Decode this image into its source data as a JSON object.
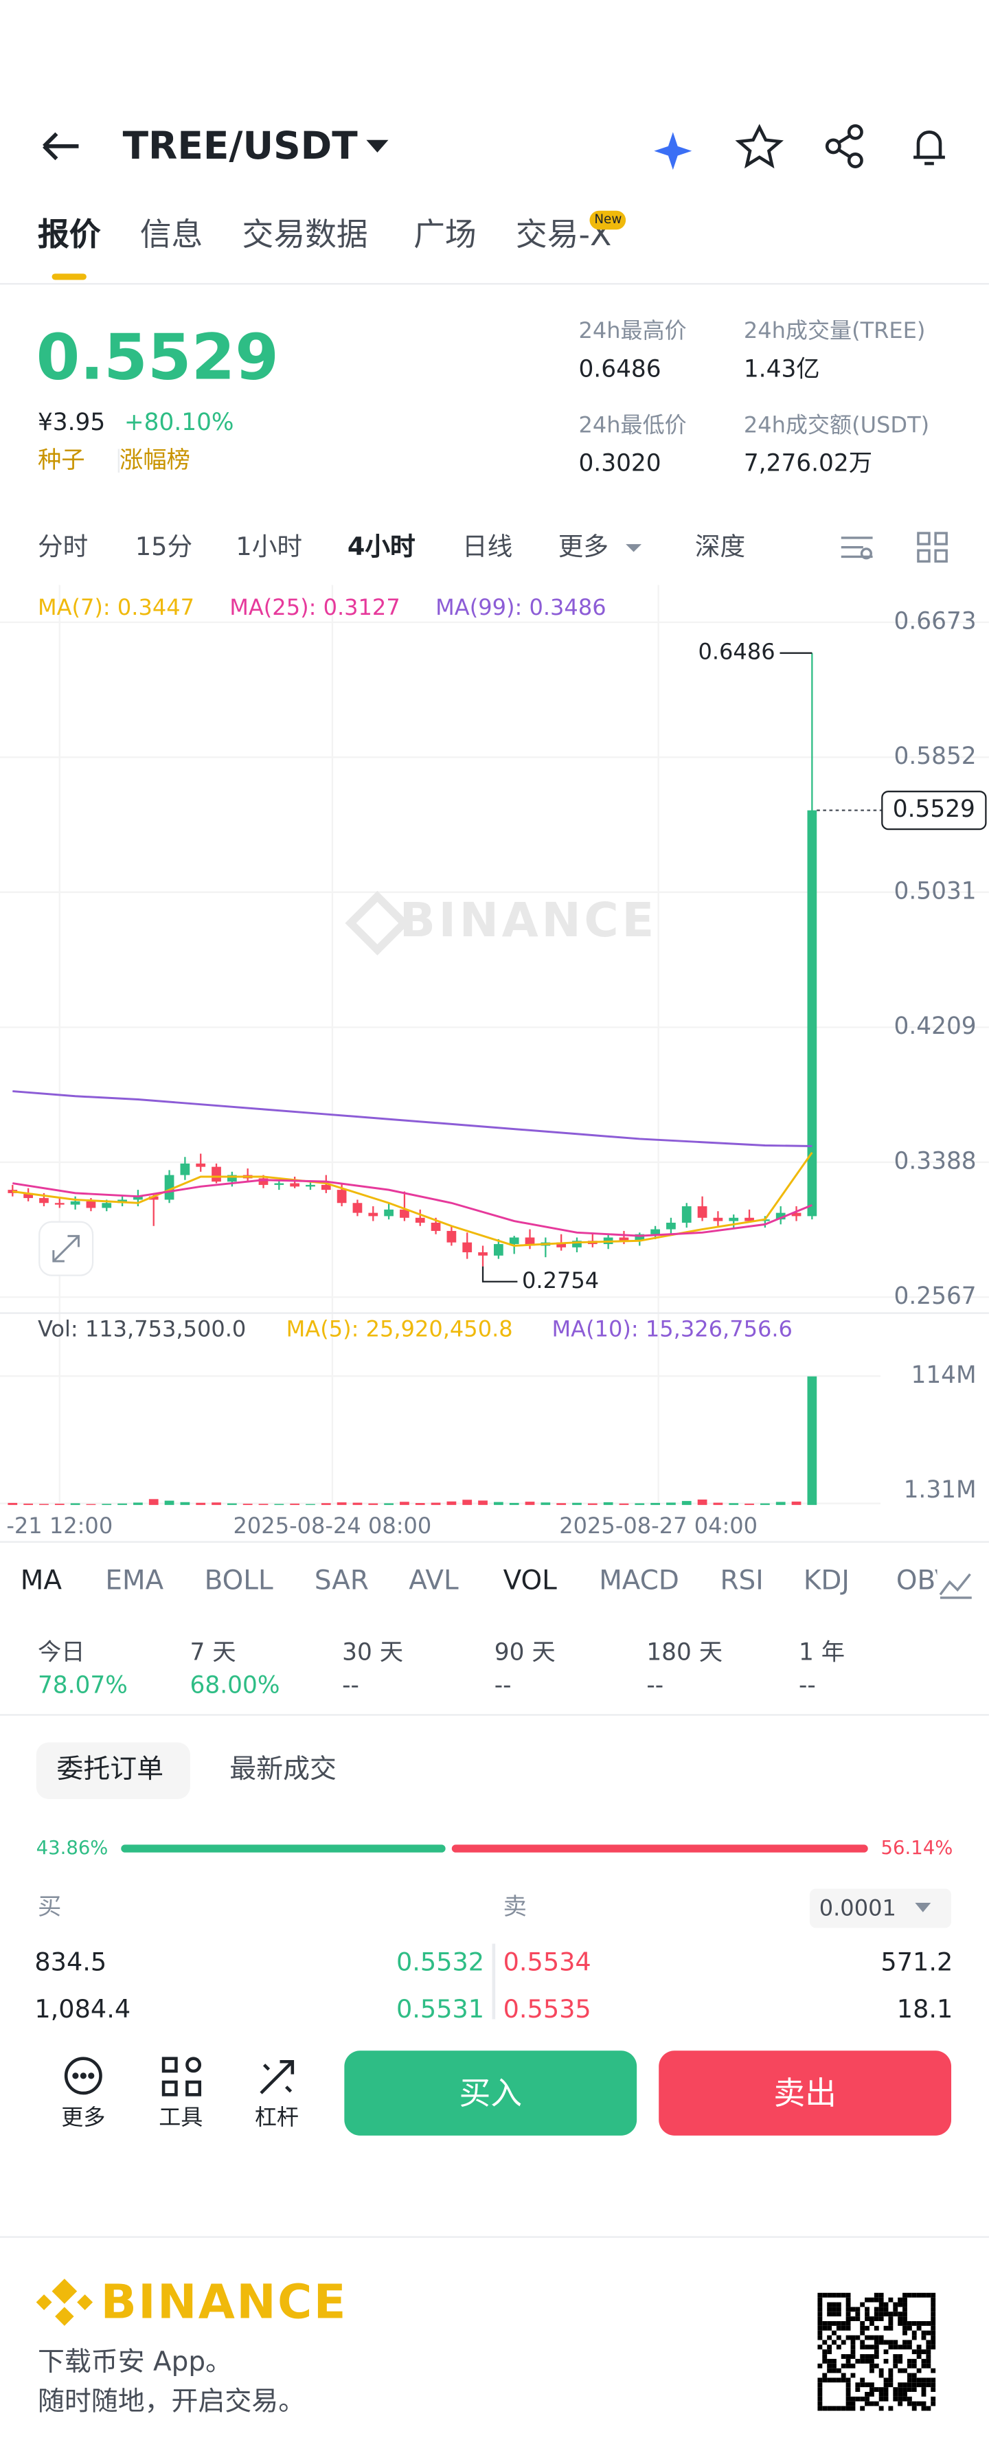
{
  "header": {
    "pair": "TREE/USDT"
  },
  "tabs": {
    "items": [
      "报价",
      "信息",
      "交易数据",
      "广场",
      "交易-X"
    ],
    "badge": "New"
  },
  "price": {
    "last": "0.5529",
    "cny": "¥3.95",
    "change": "+80.10%",
    "tags": [
      "种子",
      "涨幅榜"
    ]
  },
  "stats": [
    {
      "label": "24h最高价",
      "value": "0.6486"
    },
    {
      "label": "24h成交量(TREE)",
      "value": "1.43亿"
    },
    {
      "label": "24h最低价",
      "value": "0.3020"
    },
    {
      "label": "24h成交额(USDT)",
      "value": "7,276.02万"
    }
  ],
  "intervals": [
    "分时",
    "15分",
    "1小时",
    "4小时",
    "日线",
    "更多",
    "深度"
  ],
  "chart_data": {
    "type": "candlestick",
    "watermark": "BINANCE",
    "open": [
      0.322,
      0.32,
      0.317,
      0.314,
      0.313,
      0.315,
      0.311,
      0.314,
      0.316,
      0.318,
      0.316,
      0.331,
      0.338,
      0.336,
      0.327,
      0.331,
      0.329,
      0.325,
      0.326,
      0.324,
      0.325,
      0.322,
      0.314,
      0.308,
      0.306,
      0.31,
      0.305,
      0.302,
      0.297,
      0.29,
      0.284,
      0.282,
      0.289,
      0.293,
      0.288,
      0.29,
      0.287,
      0.291,
      0.289,
      0.293,
      0.291,
      0.295,
      0.298,
      0.302,
      0.312,
      0.305,
      0.303,
      0.305,
      0.303,
      0.304,
      0.308,
      0.306
    ],
    "high": [
      0.325,
      0.323,
      0.32,
      0.317,
      0.318,
      0.317,
      0.316,
      0.318,
      0.322,
      0.32,
      0.334,
      0.342,
      0.344,
      0.338,
      0.333,
      0.335,
      0.331,
      0.328,
      0.33,
      0.327,
      0.331,
      0.326,
      0.316,
      0.312,
      0.314,
      0.321,
      0.31,
      0.305,
      0.3,
      0.296,
      0.288,
      0.292,
      0.294,
      0.298,
      0.293,
      0.295,
      0.293,
      0.296,
      0.295,
      0.297,
      0.296,
      0.3,
      0.305,
      0.314,
      0.318,
      0.309,
      0.307,
      0.31,
      0.306,
      0.312,
      0.312,
      0.6486
    ],
    "low": [
      0.318,
      0.315,
      0.312,
      0.311,
      0.31,
      0.309,
      0.309,
      0.312,
      0.312,
      0.3,
      0.314,
      0.328,
      0.333,
      0.326,
      0.324,
      0.327,
      0.323,
      0.322,
      0.323,
      0.322,
      0.32,
      0.312,
      0.306,
      0.303,
      0.304,
      0.303,
      0.3,
      0.295,
      0.288,
      0.28,
      0.2754,
      0.28,
      0.283,
      0.286,
      0.281,
      0.285,
      0.284,
      0.287,
      0.286,
      0.289,
      0.288,
      0.292,
      0.295,
      0.299,
      0.303,
      0.3,
      0.299,
      0.302,
      0.299,
      0.301,
      0.303,
      0.304
    ],
    "close": [
      0.32,
      0.317,
      0.314,
      0.313,
      0.315,
      0.311,
      0.314,
      0.316,
      0.318,
      0.316,
      0.331,
      0.338,
      0.336,
      0.327,
      0.331,
      0.329,
      0.325,
      0.326,
      0.324,
      0.325,
      0.322,
      0.314,
      0.308,
      0.306,
      0.31,
      0.305,
      0.302,
      0.297,
      0.29,
      0.284,
      0.282,
      0.289,
      0.293,
      0.288,
      0.29,
      0.287,
      0.291,
      0.289,
      0.293,
      0.291,
      0.295,
      0.298,
      0.302,
      0.312,
      0.305,
      0.303,
      0.305,
      0.303,
      0.304,
      0.308,
      0.306,
      0.5529
    ],
    "ylim": [
      0.247,
      0.69
    ],
    "yticks": [
      0.6673,
      0.5852,
      0.5031,
      0.4209,
      0.3388,
      0.2567
    ],
    "xlim": [
      -0.5,
      53.5
    ],
    "xticks": [
      {
        "value": 3.0,
        "label": "-21 12:00"
      },
      {
        "value": 20.4,
        "label": "2025-08-24 08:00"
      },
      {
        "value": 41.2,
        "label": "2025-08-27 04:00"
      }
    ],
    "ma_series": [
      {
        "name": "MA(7): 0.3447",
        "color": "#f0b90b",
        "x": [
          0,
          4,
          8,
          12,
          16,
          20,
          24,
          28,
          32,
          36,
          40,
          44,
          48,
          51
        ],
        "values": [
          0.321,
          0.316,
          0.314,
          0.33,
          0.33,
          0.326,
          0.314,
          0.3,
          0.288,
          0.29,
          0.291,
          0.298,
          0.304,
          0.3447
        ]
      },
      {
        "name": "MA(25): 0.3127",
        "color": "#e6399b",
        "x": [
          0,
          4,
          8,
          12,
          16,
          20,
          24,
          28,
          32,
          36,
          40,
          44,
          48,
          51
        ],
        "values": [
          0.326,
          0.32,
          0.318,
          0.324,
          0.328,
          0.327,
          0.322,
          0.314,
          0.303,
          0.296,
          0.294,
          0.296,
          0.301,
          0.3127
        ]
      },
      {
        "name": "MA(99): 0.3486",
        "color": "#8c5cd6",
        "x": [
          0,
          4,
          8,
          12,
          16,
          20,
          24,
          28,
          32,
          36,
          40,
          44,
          48,
          51
        ],
        "values": [
          0.382,
          0.379,
          0.377,
          0.374,
          0.371,
          0.368,
          0.365,
          0.362,
          0.359,
          0.356,
          0.353,
          0.351,
          0.349,
          0.3486
        ]
      }
    ],
    "volume": {
      "legend": [
        "Vol: 113,753,500.0",
        "MA(5): 25,920,450.8",
        "MA(10): 15,326,756.6"
      ],
      "values": [
        1800000,
        1200000,
        900000,
        1100000,
        1500000,
        800000,
        1000000,
        1300000,
        2100000,
        5200000,
        3800000,
        2500000,
        1900000,
        2200000,
        1400000,
        1100000,
        1000000,
        900000,
        1200000,
        800000,
        1600000,
        2300000,
        2000000,
        1400000,
        1500000,
        2800000,
        1700000,
        2000000,
        3100000,
        4600000,
        3900000,
        2600000,
        1800000,
        2900000,
        2200000,
        1600000,
        1900000,
        1400000,
        2400000,
        1300000,
        1500000,
        1800000,
        2100000,
        3500000,
        4800000,
        2000000,
        1600000,
        1200000,
        1400000,
        2700000,
        3000000,
        113753500
      ],
      "ylim": [
        0,
        128000000
      ],
      "yticks": [
        {
          "value": 114000000,
          "label": "114M"
        },
        {
          "value": 1310000,
          "label": "1.31M"
        }
      ]
    }
  },
  "indicators": [
    "MA",
    "EMA",
    "BOLL",
    "SAR",
    "AVL",
    "VOL",
    "MACD",
    "RSI",
    "KDJ",
    "OBV"
  ],
  "performance": [
    {
      "label": "今日",
      "value": "78.07%"
    },
    {
      "label": "7 天",
      "value": "68.00%"
    },
    {
      "label": "30 天",
      "value": "--"
    },
    {
      "label": "90 天",
      "value": "--"
    },
    {
      "label": "180 天",
      "value": "--"
    },
    {
      "label": "1 年",
      "value": "--"
    }
  ],
  "orders": {
    "tabs": [
      "委托订单",
      "最新成交"
    ],
    "ratio": [
      43.86,
      56.14
    ],
    "ratio_labels": [
      "43.86%",
      "56.14%"
    ],
    "buy": "买",
    "sell": "卖",
    "step": "0.0001",
    "rows": [
      [
        "834.5",
        "0.5532",
        "0.5534",
        "571.2"
      ],
      [
        "1,084.4",
        "0.5531",
        "0.5535",
        "18.1"
      ]
    ]
  },
  "actions": {
    "tools": [
      "更多",
      "工具",
      "杠杆"
    ],
    "buy": "买入",
    "sell": "卖出"
  },
  "footer": {
    "brand": "BINANCE",
    "lines": [
      "下载币安 App。",
      "随时随地，开启交易。"
    ]
  }
}
